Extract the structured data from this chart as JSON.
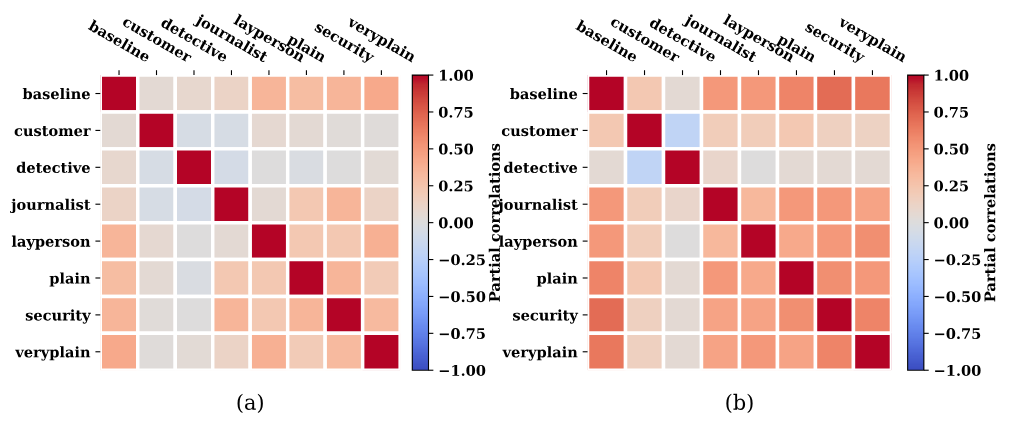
{
  "chart_data": [
    {
      "type": "heatmap",
      "xlabel": "(a)",
      "clabel": "Partial correlations",
      "categories": [
        "baseline",
        "customer",
        "detective",
        "journalist",
        "layperson",
        "plain",
        "security",
        "veryplain"
      ],
      "y_categories": [
        "baseline",
        "customer",
        "detective",
        "journalist",
        "layperson",
        "plain",
        "security",
        "veryplain"
      ],
      "cells": [
        [
          1,
          0.05,
          0.08,
          0.12,
          0.35,
          0.3,
          0.35,
          0.42
        ],
        [
          0.05,
          1,
          -0.05,
          -0.05,
          0.07,
          0.05,
          0.03,
          0.02
        ],
        [
          0.08,
          -0.05,
          1,
          -0.07,
          0,
          -0.03,
          0,
          0.04
        ],
        [
          0.12,
          -0.05,
          -0.07,
          1,
          0.05,
          0.22,
          0.35,
          0.12
        ],
        [
          0.35,
          0.07,
          0,
          0.05,
          1,
          0.22,
          0.22,
          0.38
        ],
        [
          0.3,
          0.05,
          -0.03,
          0.22,
          0.22,
          1,
          0.35,
          0.2
        ],
        [
          0.35,
          0.03,
          0,
          0.35,
          0.22,
          0.35,
          1,
          0.32
        ],
        [
          0.42,
          0.02,
          0.04,
          0.12,
          0.38,
          0.2,
          0.32,
          1
        ]
      ],
      "clim": [
        -1,
        1
      ],
      "cticks": [
        {
          "value": -1,
          "label": "−1.00"
        },
        {
          "value": -0.75,
          "label": "−0.75"
        },
        {
          "value": -0.5,
          "label": "−0.50"
        },
        {
          "value": -0.25,
          "label": "−0.25"
        },
        {
          "value": 0,
          "label": "0.00"
        },
        {
          "value": 0.25,
          "label": "0.25"
        },
        {
          "value": 0.5,
          "label": "0.50"
        },
        {
          "value": 0.75,
          "label": "0.75"
        },
        {
          "value": 1,
          "label": "1.00"
        }
      ]
    },
    {
      "type": "heatmap",
      "xlabel": "(b)",
      "clabel": "Partial correlations",
      "categories": [
        "baseline",
        "customer",
        "detective",
        "journalist",
        "layperson",
        "plain",
        "security",
        "veryplain"
      ],
      "y_categories": [
        "baseline",
        "customer",
        "detective",
        "journalist",
        "layperson",
        "plain",
        "security",
        "veryplain"
      ],
      "cells": [
        [
          1,
          0.22,
          0.05,
          0.5,
          0.5,
          0.6,
          0.7,
          0.65
        ],
        [
          0.22,
          1,
          -0.2,
          0.18,
          0.18,
          0.22,
          0.15,
          0.14
        ],
        [
          0.05,
          -0.2,
          1,
          0.1,
          0,
          0.05,
          0.05,
          0.05
        ],
        [
          0.5,
          0.18,
          0.1,
          1,
          0.33,
          0.5,
          0.5,
          0.45
        ],
        [
          0.5,
          0.18,
          0,
          0.33,
          1,
          0.42,
          0.5,
          0.55
        ],
        [
          0.6,
          0.22,
          0.05,
          0.5,
          0.42,
          1,
          0.55,
          0.5
        ],
        [
          0.7,
          0.15,
          0.05,
          0.45,
          0.45,
          0.55,
          1,
          0.6
        ],
        [
          0.65,
          0.15,
          0.05,
          0.45,
          0.5,
          0.45,
          0.6,
          1
        ]
      ],
      "clim": [
        -1,
        1
      ],
      "cticks": [
        {
          "value": -1,
          "label": "−1.00"
        },
        {
          "value": -0.75,
          "label": "−0.75"
        },
        {
          "value": -0.5,
          "label": "−0.50"
        },
        {
          "value": -0.25,
          "label": "−0.25"
        },
        {
          "value": 0,
          "label": "0.00"
        },
        {
          "value": 0.25,
          "label": "0.25"
        },
        {
          "value": 0.5,
          "label": "0.50"
        },
        {
          "value": 0.75,
          "label": "0.75"
        },
        {
          "value": 1,
          "label": "1.00"
        }
      ]
    }
  ]
}
